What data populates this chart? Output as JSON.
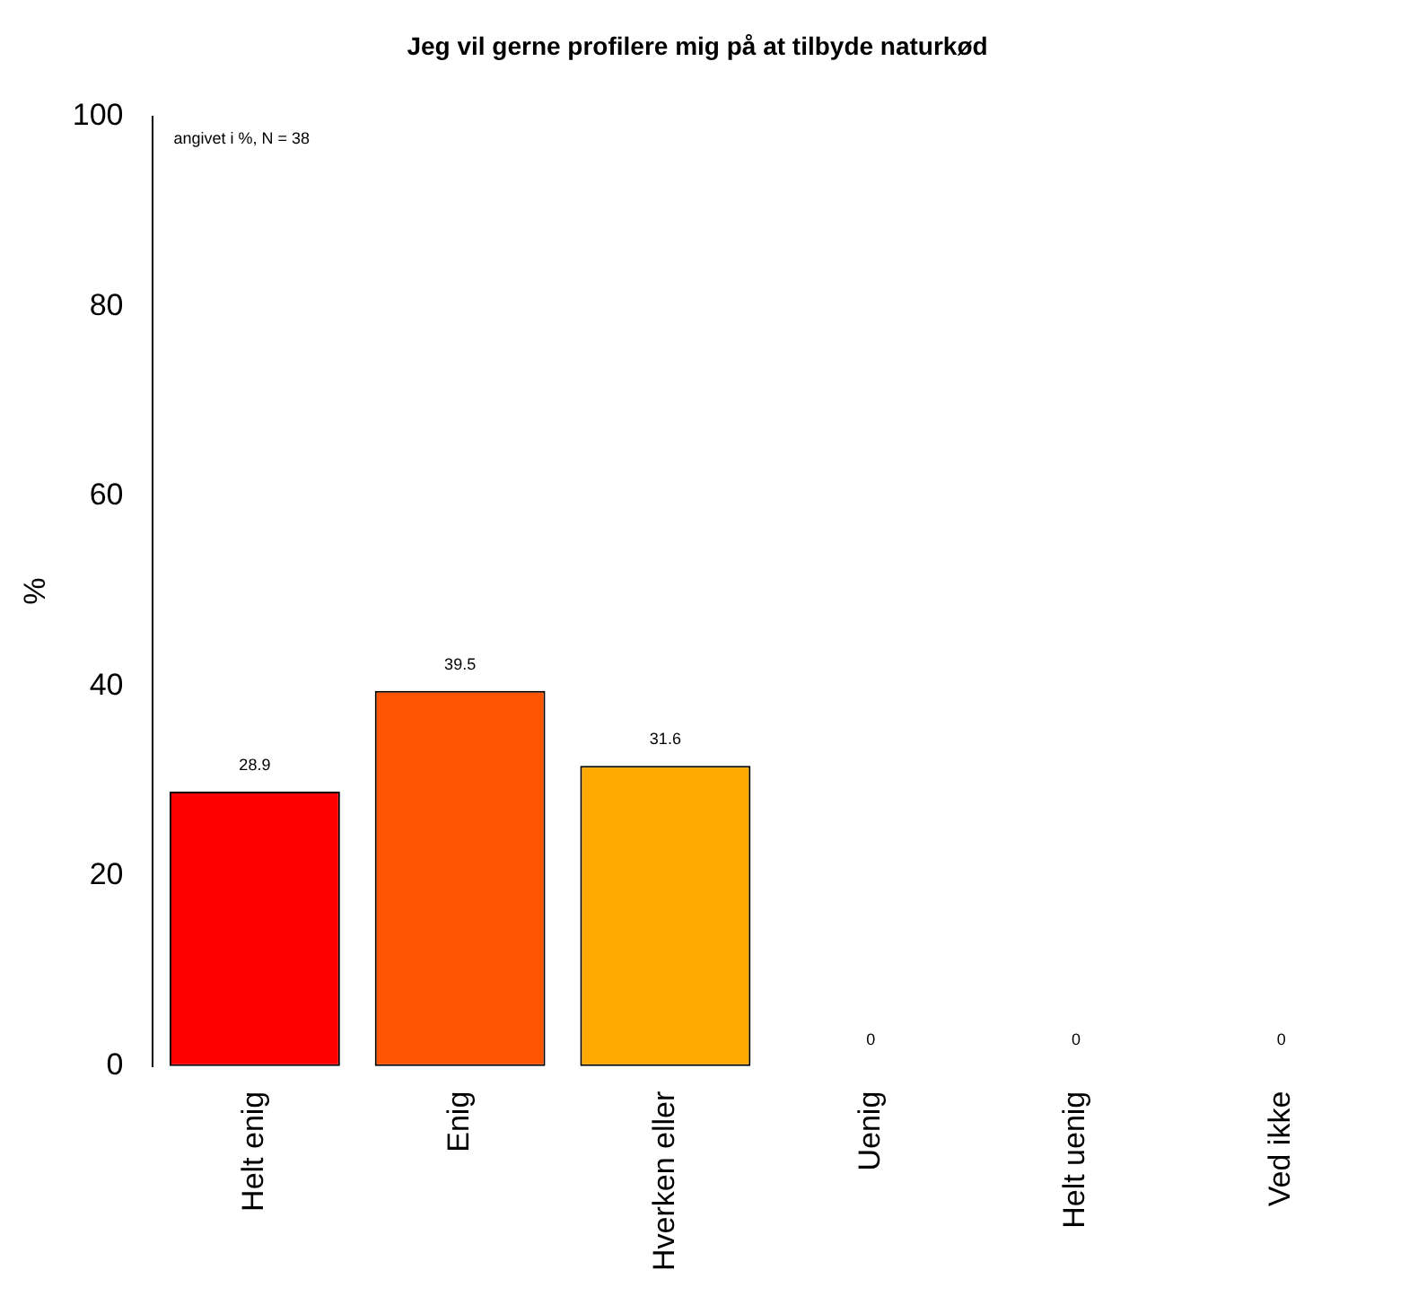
{
  "chart_data": {
    "type": "bar",
    "title": "Jeg vil gerne profilere mig på at tilbyde naturkød",
    "ylabel": "%",
    "categories": [
      "Helt enig",
      "Enig",
      "Hverken eller",
      "Uenig",
      "Helt uenig",
      "Ved ikke"
    ],
    "values": [
      28.9,
      39.5,
      31.6,
      0,
      0,
      0
    ],
    "colors": [
      "#ff0000",
      "#ff5500",
      "#ffaa00",
      "#ffff00",
      "#ffff40",
      "#ffffbf"
    ],
    "ylim": [
      0,
      100
    ],
    "yticks": [
      0,
      20,
      40,
      60,
      80,
      100
    ],
    "grid": false,
    "legend": false,
    "data_labels": true,
    "annotations": [
      "angivet i %, N = 38"
    ]
  }
}
